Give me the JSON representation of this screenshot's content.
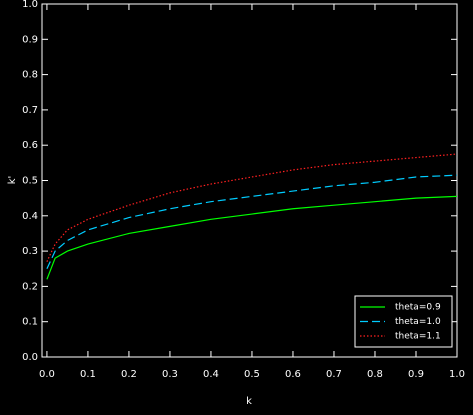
{
  "chart_data": {
    "type": "line",
    "xlabel": "k",
    "ylabel": "k'",
    "x": [
      0,
      0.02,
      0.05,
      0.1,
      0.2,
      0.3,
      0.4,
      0.5,
      0.6,
      0.7,
      0.8,
      0.9,
      1.0
    ],
    "series": [
      {
        "name": "theta=0.9",
        "color": "#00ff00",
        "style": "solid",
        "values": [
          0.22,
          0.28,
          0.3,
          0.32,
          0.35,
          0.37,
          0.39,
          0.405,
          0.42,
          0.43,
          0.44,
          0.45,
          0.455
        ]
      },
      {
        "name": "theta=1.0",
        "color": "#00ccff",
        "style": "dashed",
        "values": [
          0.25,
          0.3,
          0.33,
          0.36,
          0.395,
          0.42,
          0.44,
          0.455,
          0.47,
          0.485,
          0.495,
          0.51,
          0.515
        ]
      },
      {
        "name": "theta=1.1",
        "color": "#ff2020",
        "style": "dotted",
        "values": [
          0.27,
          0.32,
          0.36,
          0.39,
          0.43,
          0.465,
          0.49,
          0.51,
          0.53,
          0.545,
          0.555,
          0.565,
          0.575
        ]
      }
    ],
    "xlim": [
      -0.012,
      1.0
    ],
    "ylim": [
      0,
      1.0
    ],
    "xticks": [
      {
        "value": 0,
        "label": "0.0"
      },
      0.1,
      0.2,
      0.3,
      0.4,
      0.5,
      0.6,
      0.7,
      0.8,
      0.9,
      {
        "value": 1.0,
        "label": "1.0"
      }
    ],
    "yticks": [
      {
        "value": 0,
        "label": "0.0"
      },
      0.1,
      0.2,
      0.3,
      0.4,
      0.5,
      0.6,
      0.7,
      0.8,
      0.9,
      {
        "value": 1.0,
        "label": "1.0"
      }
    ],
    "legend": "lower right"
  }
}
